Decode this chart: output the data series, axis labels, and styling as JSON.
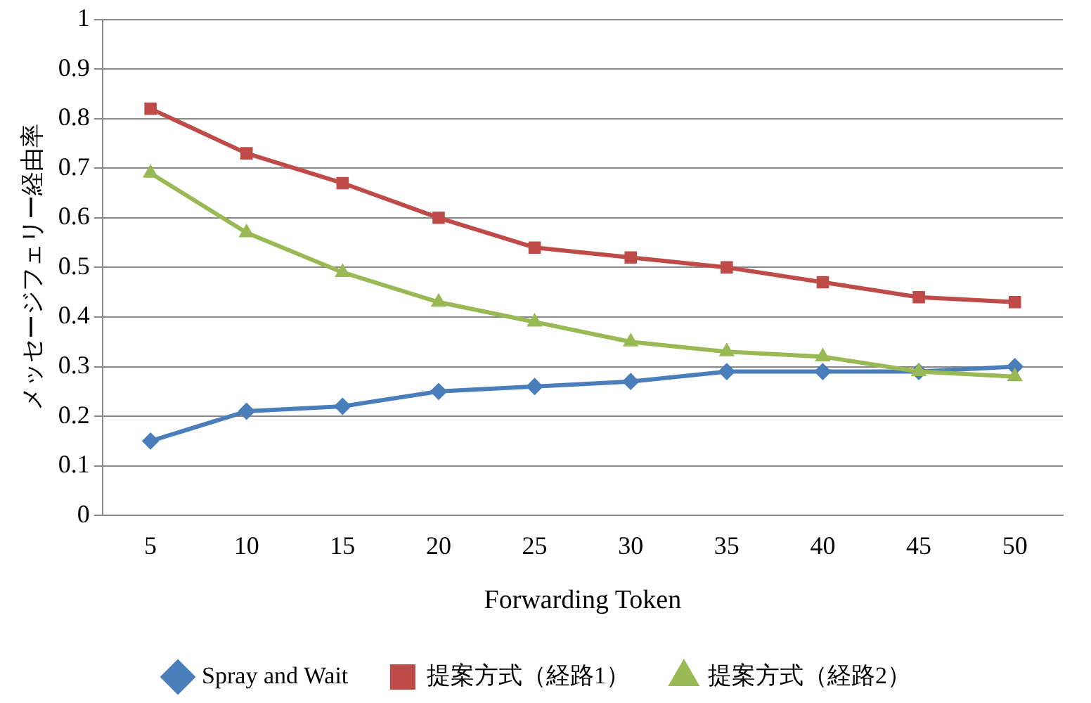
{
  "chart_data": {
    "type": "line",
    "xlabel": "Forwarding Token",
    "ylabel": "メッセージフェリー経由率",
    "categories": [
      "5",
      "10",
      "15",
      "20",
      "25",
      "30",
      "35",
      "40",
      "45",
      "50"
    ],
    "series": [
      {
        "name": "Spray and Wait",
        "color": "#4a7ebb",
        "marker": "diamond",
        "values": [
          0.15,
          0.21,
          0.22,
          0.25,
          0.26,
          0.27,
          0.29,
          0.29,
          0.29,
          0.3
        ]
      },
      {
        "name": "提案方式（経路1）",
        "color": "#be4b48",
        "marker": "square",
        "values": [
          0.82,
          0.73,
          0.67,
          0.6,
          0.54,
          0.52,
          0.5,
          0.47,
          0.44,
          0.43
        ]
      },
      {
        "name": "提案方式（経路2）",
        "color": "#98b954",
        "marker": "triangle",
        "values": [
          0.69,
          0.57,
          0.49,
          0.43,
          0.39,
          0.35,
          0.33,
          0.32,
          0.29,
          0.28
        ]
      }
    ],
    "ylim": [
      0,
      1
    ],
    "yticks": [
      0,
      0.1,
      0.2,
      0.3,
      0.4,
      0.5,
      0.6,
      0.7,
      0.8,
      0.9,
      1
    ],
    "grid": "y",
    "legend": "bottom",
    "line_style": "solid"
  }
}
